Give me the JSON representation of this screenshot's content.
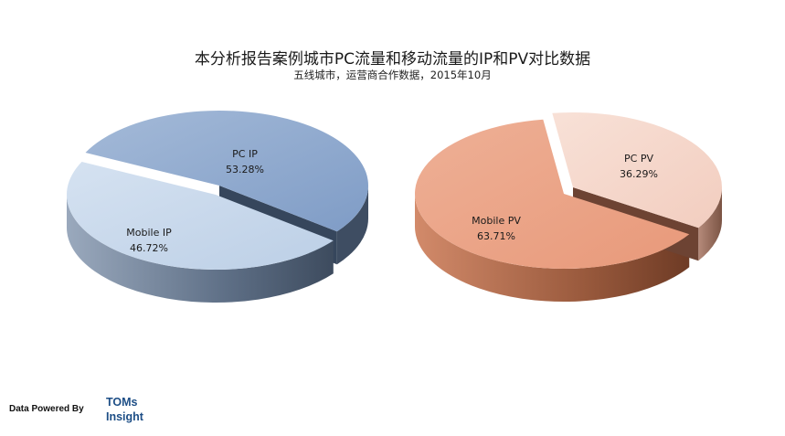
{
  "title": "本分析报告案例城市PC流量和移动流量的IP和PV对比数据",
  "subtitle": "五线城市，运营商合作数据，2015年10月",
  "footer": {
    "powered_by": "Data Powered By",
    "brand_line1": "TOMs",
    "brand_line2": "Insight"
  },
  "colors": {
    "ip_pc": "#8aa6cc",
    "ip_mobile": "#c6d6eb",
    "ip_side": "#5b6d85",
    "pv_pc": "#f5d6ca",
    "pv_mobile": "#eaa383",
    "pv_side": "#8a4f34"
  },
  "chart_data": [
    {
      "type": "pie",
      "slices": [
        {
          "name": "PC IP",
          "value": 53.28,
          "label": "53.28%"
        },
        {
          "name": "Mobile IP",
          "value": 46.72,
          "label": "46.72%"
        }
      ]
    },
    {
      "type": "pie",
      "slices": [
        {
          "name": "PC PV",
          "value": 36.29,
          "label": "36.29%"
        },
        {
          "name": "Mobile PV",
          "value": 63.71,
          "label": "63.71%"
        }
      ]
    }
  ]
}
